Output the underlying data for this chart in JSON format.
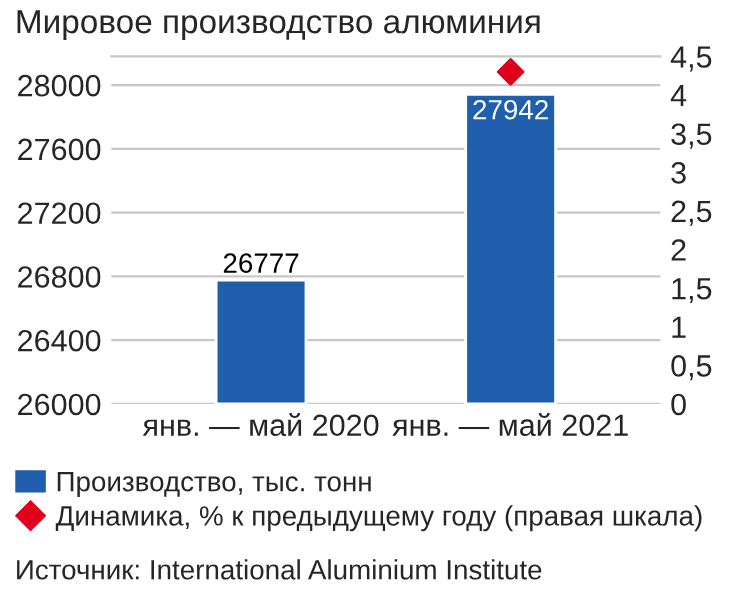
{
  "chart_data": {
    "type": "bar",
    "title": "Мировое производство алюминия",
    "categories": [
      "янв. — май 2020",
      "янв. — май 2021"
    ],
    "series": [
      {
        "name": "Производство, тыс. тонн",
        "color": "#1f5fae",
        "values": [
          26777,
          27942
        ],
        "value_labels": [
          "26777",
          "27942"
        ]
      },
      {
        "name": "Динамика, % к предыдущему году (правая шкала)",
        "type": "scatter",
        "axis": "y2",
        "marker": "diamond",
        "color": "#e0001b",
        "values": [
          null,
          4.3
        ]
      }
    ],
    "ylim": [
      26000,
      28180
    ],
    "yticks": [
      26000,
      26400,
      26800,
      27200,
      27600,
      28000
    ],
    "y2lim": [
      0,
      4.5
    ],
    "y2ticks": [
      {
        "value": 0,
        "label": "0"
      },
      {
        "value": 0.5,
        "label": "0,5"
      },
      {
        "value": 1,
        "label": "1"
      },
      {
        "value": 1.5,
        "label": "1,5"
      },
      {
        "value": 2,
        "label": "2"
      },
      {
        "value": 2.5,
        "label": "2,5"
      },
      {
        "value": 3,
        "label": "3"
      },
      {
        "value": 3.5,
        "label": "3,5"
      },
      {
        "value": 4,
        "label": "4"
      },
      {
        "value": 4.5,
        "label": "4,5"
      }
    ],
    "grid": "y",
    "legend": "bottom",
    "annotations": [
      "Источник: International Aluminium Institute"
    ]
  }
}
